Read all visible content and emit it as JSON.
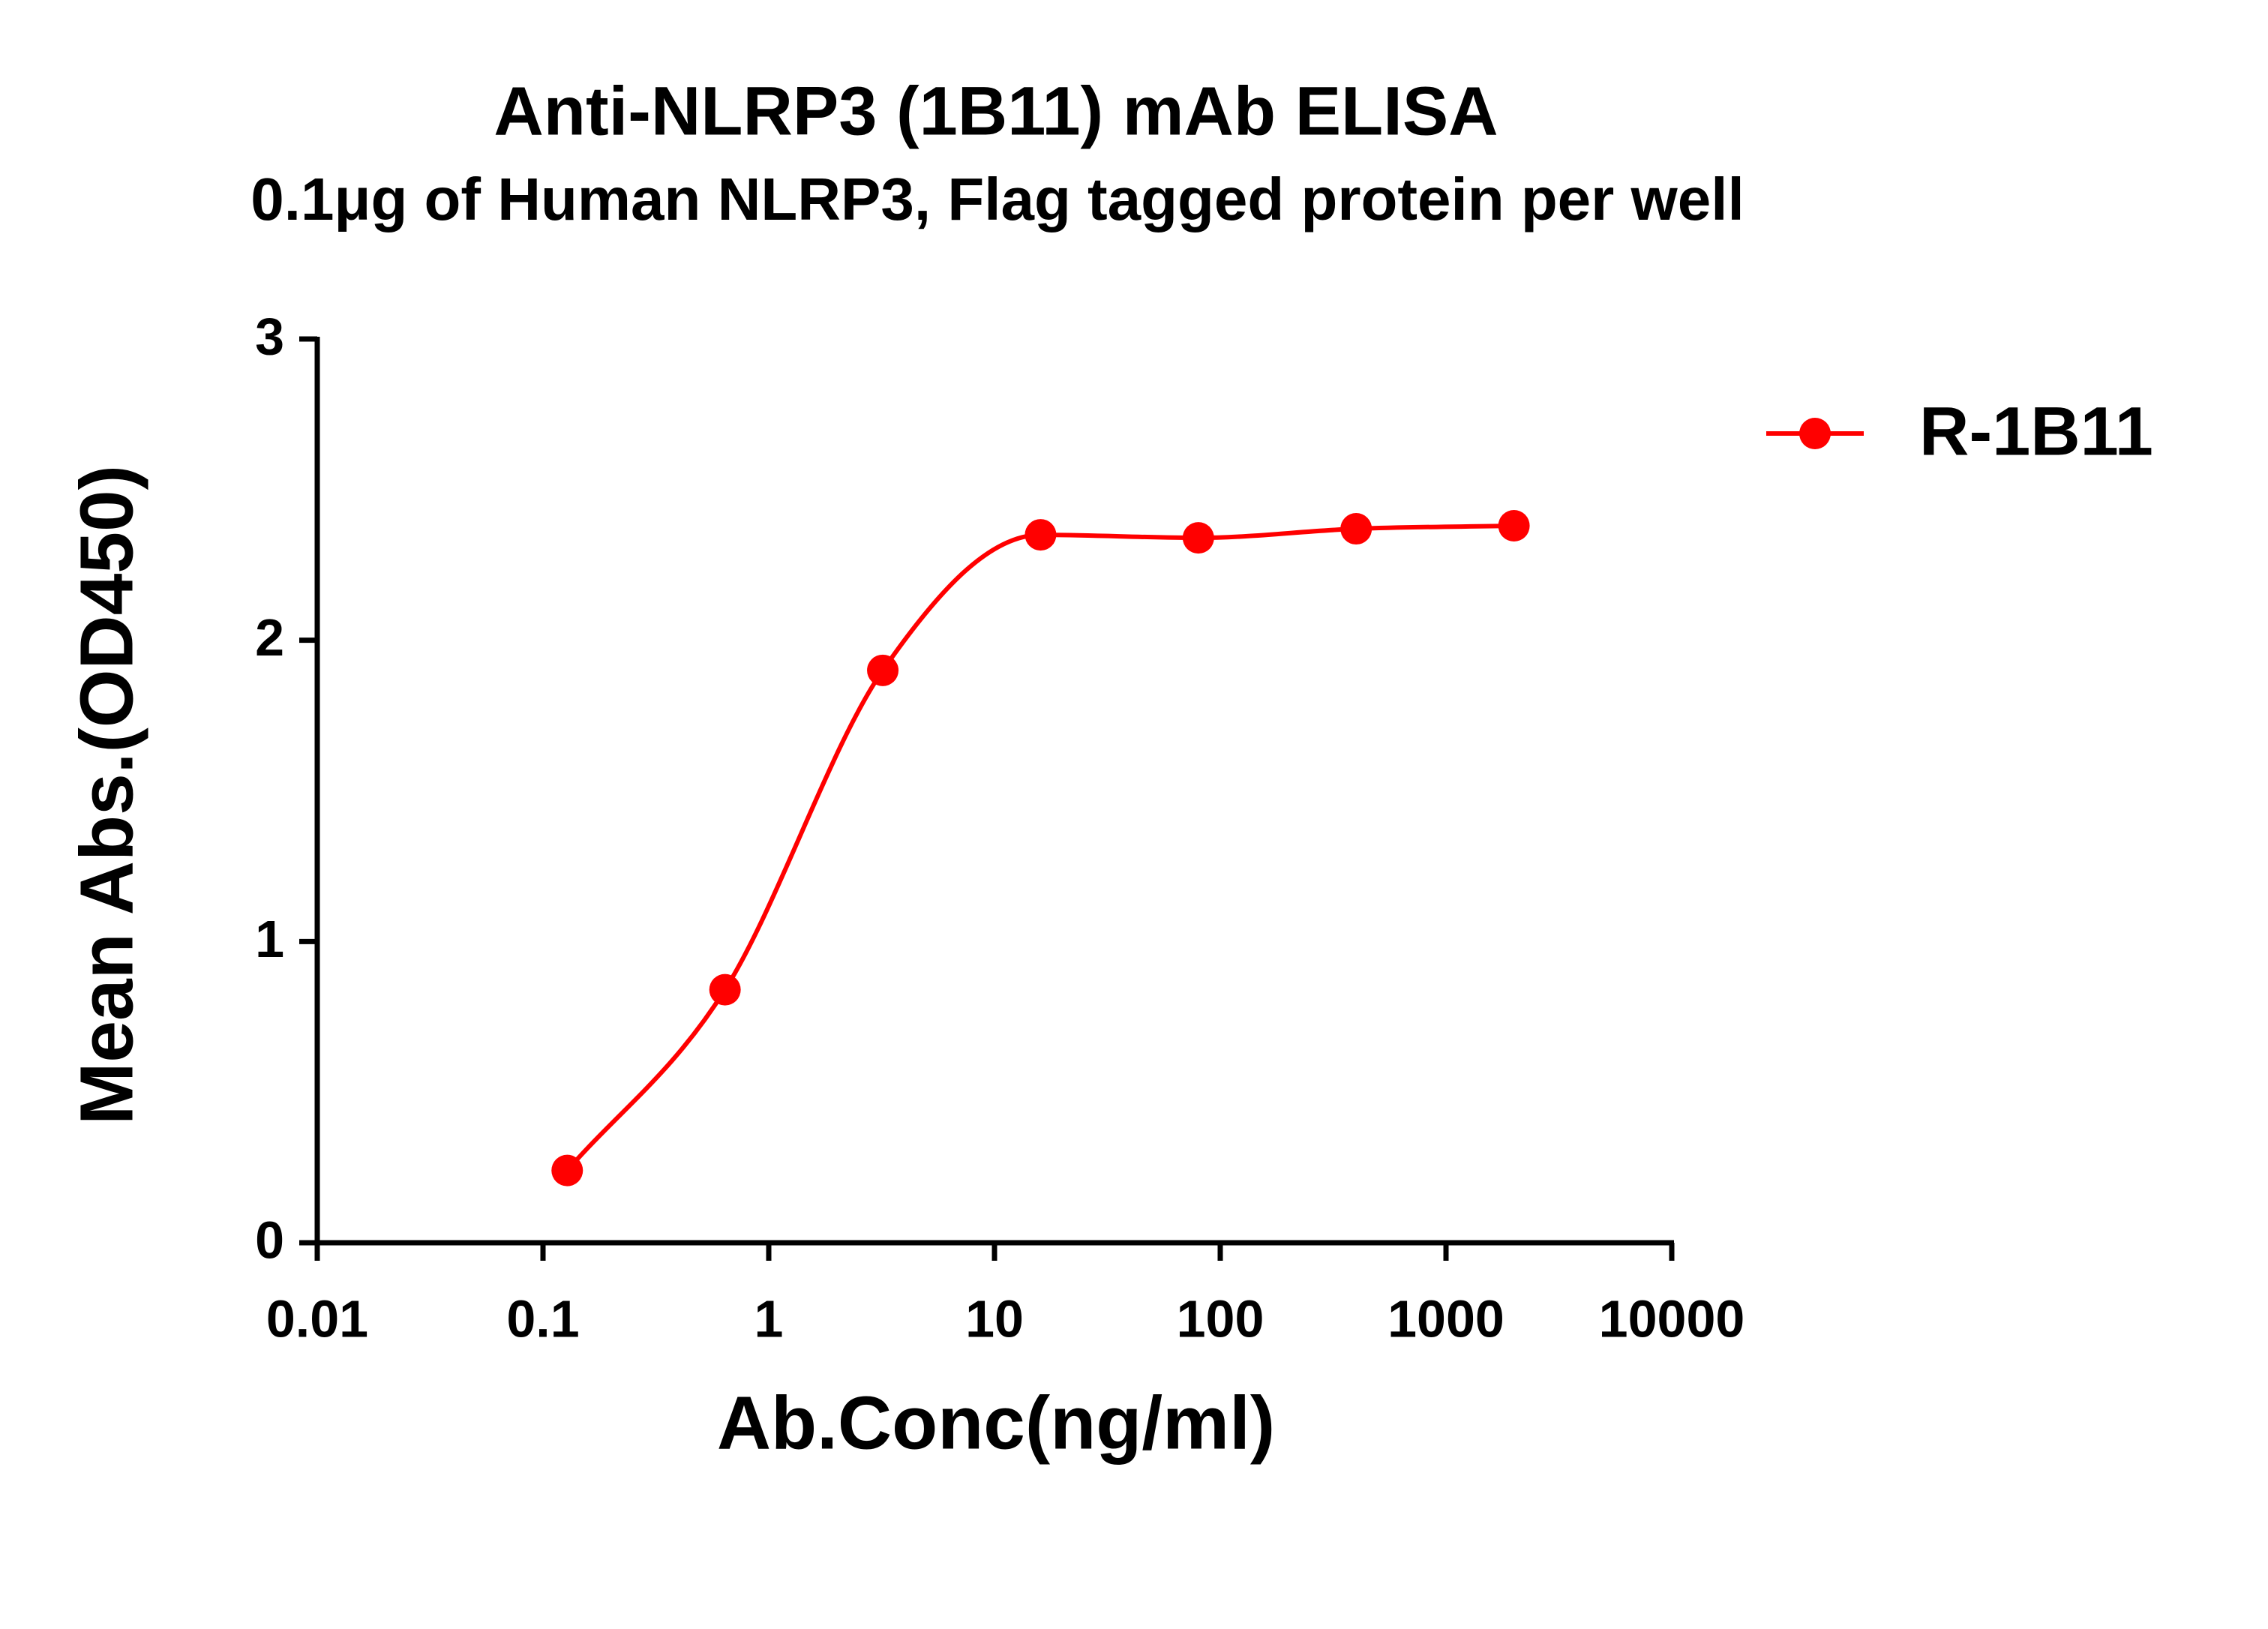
{
  "chart_data": {
    "type": "line",
    "title": "Anti-NLRP3 (1B11) mAb ELISA",
    "subtitle": "0.1μg of Human NLRP3, Flag tagged protein per well",
    "x_label": "Ab.Conc(ng/ml)",
    "y_label": "Mean Abs.(OD450)",
    "x": [
      0.128,
      0.64,
      3.2,
      16,
      80,
      400,
      2000
    ],
    "series": [
      {
        "name": "R-1B11",
        "color": "#ff0000",
        "values": [
          0.24,
          0.84,
          1.9,
          2.35,
          2.34,
          2.37,
          2.38
        ]
      }
    ],
    "xlim": [
      0.01,
      10000
    ],
    "xticks": [
      0.01,
      0.1,
      1,
      10,
      100,
      1000,
      10000
    ],
    "ylim": [
      0,
      3
    ],
    "yticks": [
      0,
      1,
      2,
      3
    ],
    "x_log": true,
    "legend": "right"
  }
}
